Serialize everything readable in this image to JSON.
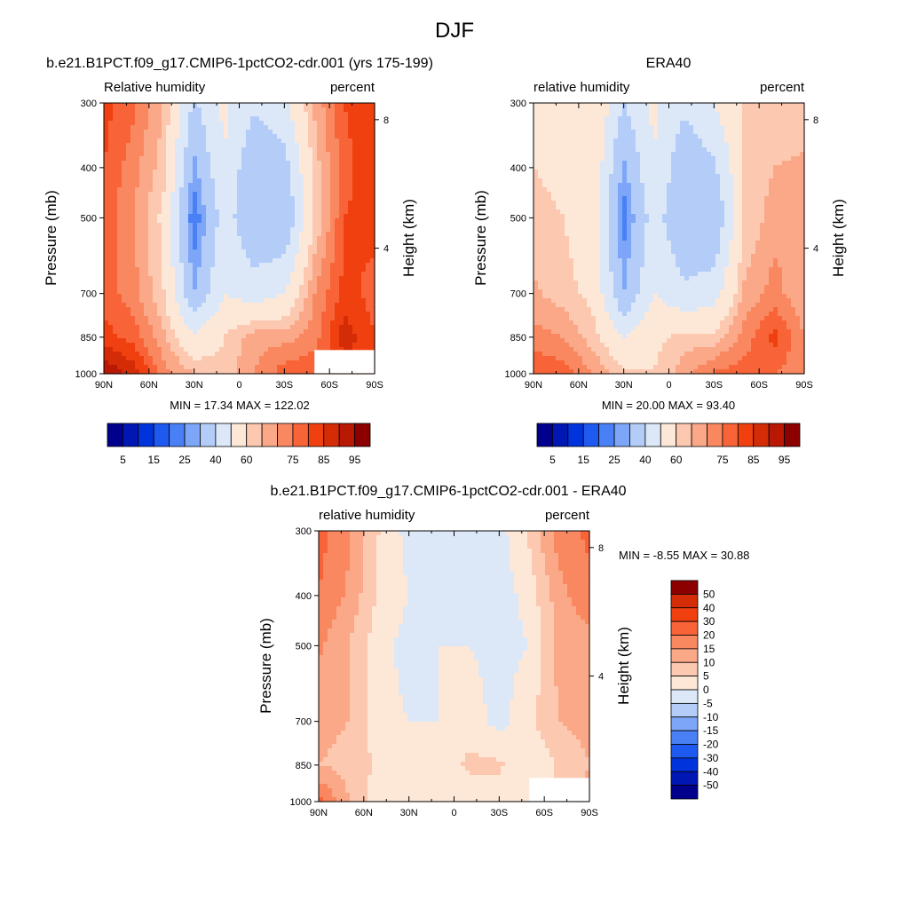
{
  "figure": {
    "title": "DJF"
  },
  "palettes": {
    "abs": [
      "#00008c",
      "#0017b4",
      "#0033dc",
      "#1e5af0",
      "#4a80f6",
      "#7ea6f8",
      "#b4cdf8",
      "#dce8f8",
      "#fde8d8",
      "#fcc8b0",
      "#fba888",
      "#f98860",
      "#f86438",
      "#f04010",
      "#d42c06",
      "#b81804",
      "#8c0000"
    ],
    "diff": [
      "#00008c",
      "#0017b4",
      "#0033dc",
      "#1e5af0",
      "#4a80f6",
      "#7ea6f8",
      "#b4cdf8",
      "#dce8f8",
      "#fde8d8",
      "#fcc8b0",
      "#fba888",
      "#f98860",
      "#f86438",
      "#f04010",
      "#d42c06",
      "#8c0000"
    ]
  },
  "panels": [
    {
      "title": "b.e21.B1PCT.f09_g17.CMIP6-1pctCO2-cdr.001 (yrs 175-199)",
      "left_label": "Relative humidity",
      "right_label": "percent",
      "ylabel": "Pressure (mb)",
      "ylabel_right": "Height (km)",
      "stats": "MIN =  17.34  MAX = 122.02",
      "colorbar_labels": [
        "5",
        "15",
        "25",
        "40",
        "60",
        "75",
        "85",
        "95"
      ]
    },
    {
      "title": "ERA40",
      "left_label": "relative humidity",
      "right_label": "percent",
      "ylabel": "Pressure (mb)",
      "ylabel_right": "Height (km)",
      "stats": "MIN =  20.00  MAX =  93.40",
      "colorbar_labels": [
        "5",
        "15",
        "25",
        "40",
        "60",
        "75",
        "85",
        "95"
      ]
    },
    {
      "title": "b.e21.B1PCT.f09_g17.CMIP6-1pctCO2-cdr.001 - ERA40",
      "left_label": "relative humidity",
      "right_label": "percent",
      "ylabel": "Pressure (mb)",
      "ylabel_right": "Height (km)",
      "stats": "MIN =  -8.55  MAX =  30.88",
      "colorbar_labels": [
        "50",
        "40",
        "30",
        "20",
        "15",
        "10",
        "5",
        "0",
        "-5",
        "-10",
        "-15",
        "-20",
        "-30",
        "-40",
        "-50"
      ]
    }
  ],
  "chart_data": [
    {
      "type": "heatmap",
      "title": "b.e21.B1PCT.f09_g17.CMIP6-1pctCO2-cdr.001 (yrs 175-199)",
      "xlabel": "",
      "ylabel": "Pressure (mb)",
      "ylabel_right": "Height (km)",
      "x_ticks": [
        "90N",
        "60N",
        "30N",
        "0",
        "30S",
        "60S",
        "90S"
      ],
      "y_ticks": [
        "300",
        "400",
        "500",
        "700",
        "850",
        "1000"
      ],
      "y_right_ticks": [
        "8",
        "4"
      ],
      "y_scale": "log",
      "y_range": [
        1000,
        300
      ],
      "x_range": [
        90,
        -90
      ],
      "lat": [
        90,
        70,
        50,
        30,
        10,
        -10,
        -30,
        -50,
        -70,
        -90
      ],
      "pressure": [
        1000,
        850,
        700,
        500,
        400,
        300
      ],
      "values": [
        [
          95,
          88,
          72,
          65,
          62,
          70,
          78,
          80,
          82,
          84
        ],
        [
          82,
          78,
          66,
          52,
          60,
          68,
          68,
          72,
          88,
          80
        ],
        [
          78,
          72,
          60,
          30,
          50,
          45,
          50,
          70,
          82,
          78
        ],
        [
          78,
          70,
          58,
          20,
          45,
          30,
          30,
          60,
          80,
          82
        ],
        [
          80,
          72,
          62,
          28,
          50,
          30,
          35,
          62,
          78,
          85
        ],
        [
          82,
          76,
          65,
          38,
          52,
          42,
          48,
          66,
          80,
          85
        ]
      ],
      "missing_region": {
        "lat_range": [
          -50,
          -90
        ],
        "pressure_range": [
          1000,
          900
        ]
      },
      "colorbar_levels": [
        5,
        10,
        15,
        20,
        25,
        30,
        40,
        50,
        60,
        65,
        70,
        75,
        80,
        85,
        90,
        95
      ],
      "min": 17.34,
      "max": 122.02,
      "units": "percent"
    },
    {
      "type": "heatmap",
      "title": "ERA40",
      "xlabel": "",
      "ylabel": "Pressure (mb)",
      "ylabel_right": "Height (km)",
      "x_ticks": [
        "90N",
        "60N",
        "30N",
        "0",
        "30S",
        "60S",
        "90S"
      ],
      "y_ticks": [
        "300",
        "400",
        "500",
        "700",
        "850",
        "1000"
      ],
      "y_right_ticks": [
        "8",
        "4"
      ],
      "y_scale": "log",
      "y_range": [
        1000,
        300
      ],
      "x_range": [
        90,
        -90
      ],
      "lat": [
        90,
        70,
        50,
        30,
        10,
        -10,
        -30,
        -50,
        -70,
        -90
      ],
      "pressure": [
        1000,
        850,
        700,
        500,
        400,
        300
      ],
      "values": [
        [
          80,
          78,
          70,
          62,
          60,
          68,
          76,
          78,
          75,
          72
        ],
        [
          72,
          70,
          62,
          50,
          58,
          62,
          62,
          72,
          82,
          70
        ],
        [
          66,
          62,
          58,
          30,
          50,
          42,
          45,
          66,
          72,
          66
        ],
        [
          62,
          60,
          56,
          22,
          45,
          30,
          30,
          60,
          68,
          70
        ],
        [
          60,
          58,
          58,
          28,
          50,
          32,
          38,
          60,
          65,
          66
        ],
        [
          60,
          60,
          60,
          40,
          52,
          42,
          50,
          60,
          62,
          62
        ]
      ],
      "colorbar_levels": [
        5,
        10,
        15,
        20,
        25,
        30,
        40,
        50,
        60,
        65,
        70,
        75,
        80,
        85,
        90,
        95
      ],
      "min": 20.0,
      "max": 93.4,
      "units": "percent"
    },
    {
      "type": "heatmap",
      "title": "b.e21.B1PCT.f09_g17.CMIP6-1pctCO2-cdr.001 - ERA40",
      "xlabel": "",
      "ylabel": "Pressure (mb)",
      "ylabel_right": "Height (km)",
      "x_ticks": [
        "90N",
        "60N",
        "30N",
        "0",
        "30S",
        "60S",
        "90S"
      ],
      "y_ticks": [
        "300",
        "400",
        "500",
        "700",
        "850",
        "1000"
      ],
      "y_right_ticks": [
        "8",
        "4"
      ],
      "y_scale": "log",
      "y_range": [
        1000,
        300
      ],
      "x_range": [
        90,
        -90
      ],
      "lat": [
        90,
        70,
        50,
        30,
        10,
        -10,
        -30,
        -50,
        -70,
        -90
      ],
      "pressure": [
        1000,
        850,
        700,
        500,
        400,
        300
      ],
      "values": [
        [
          22,
          10,
          2,
          3,
          2,
          2,
          2,
          2,
          7,
          12
        ],
        [
          10,
          8,
          4,
          2,
          2,
          6,
          6,
          0,
          6,
          10
        ],
        [
          12,
          10,
          2,
          0,
          0,
          3,
          -2,
          4,
          10,
          12
        ],
        [
          16,
          10,
          2,
          -2,
          0,
          0,
          -2,
          0,
          12,
          12
        ],
        [
          20,
          14,
          4,
          0,
          -4,
          -2,
          -3,
          2,
          13,
          19
        ],
        [
          22,
          16,
          5,
          -2,
          -4,
          0,
          -2,
          6,
          18,
          21
        ]
      ],
      "missing_region": {
        "lat_range": [
          -50,
          -90
        ],
        "pressure_range": [
          1000,
          900
        ]
      },
      "colorbar_levels": [
        -50,
        -40,
        -30,
        -20,
        -15,
        -10,
        -5,
        0,
        5,
        10,
        15,
        20,
        30,
        40,
        50
      ],
      "min": -8.55,
      "max": 30.88,
      "units": "percent"
    }
  ]
}
